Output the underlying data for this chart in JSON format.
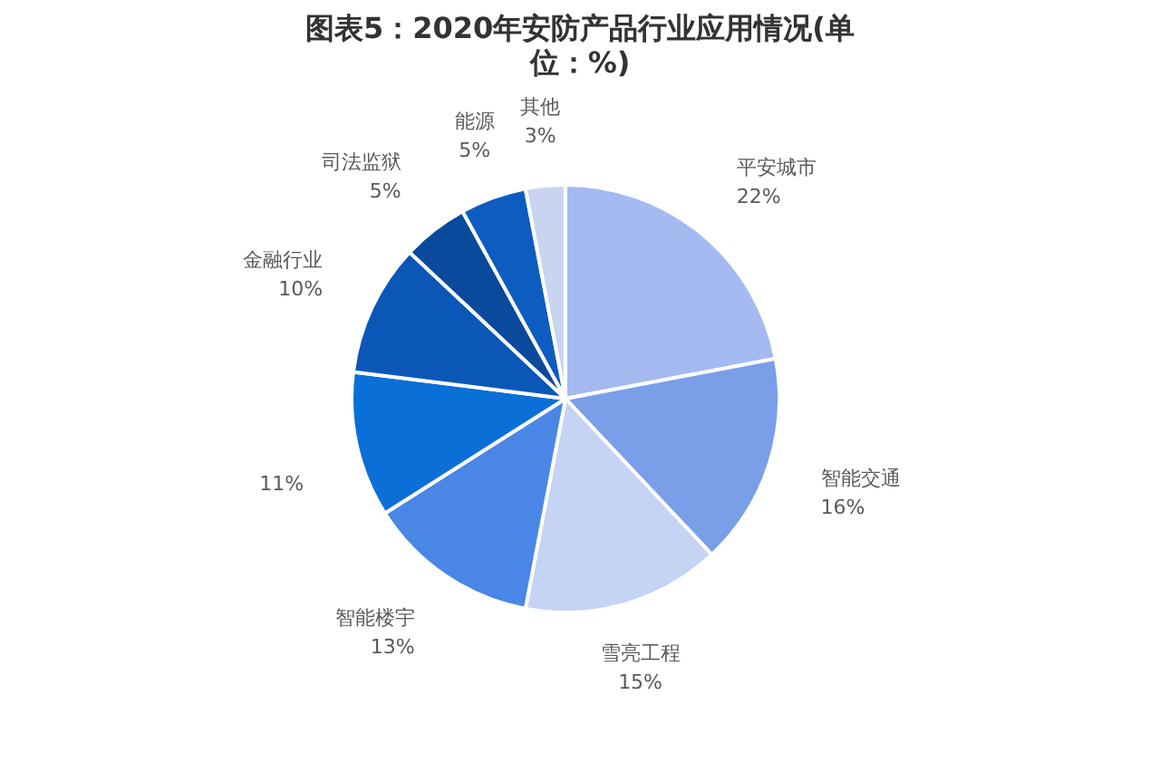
{
  "chart_data": {
    "type": "pie",
    "title": "图表5：2020年安防产品行业应用情况(单位：%)",
    "categories": [
      "平安城市",
      "智能交通",
      "雪亮工程",
      "智能楼宇",
      null,
      "金融行业",
      "司法监狱",
      "能源",
      "其他"
    ],
    "values": [
      22,
      16,
      15,
      13,
      11,
      10,
      5,
      5,
      3
    ],
    "value_labels": [
      "22%",
      "16%",
      "15%",
      "13%",
      "11%",
      "10%",
      "5%",
      "5%",
      "3%"
    ],
    "colors": [
      "#a4baf0",
      "#7a9ee8",
      "#c5d3f5",
      "#4a86e6",
      "#0b6fd8",
      "#0a57b8",
      "#0a4a9c",
      "#0d5cc0",
      "#c8d4f0"
    ]
  }
}
